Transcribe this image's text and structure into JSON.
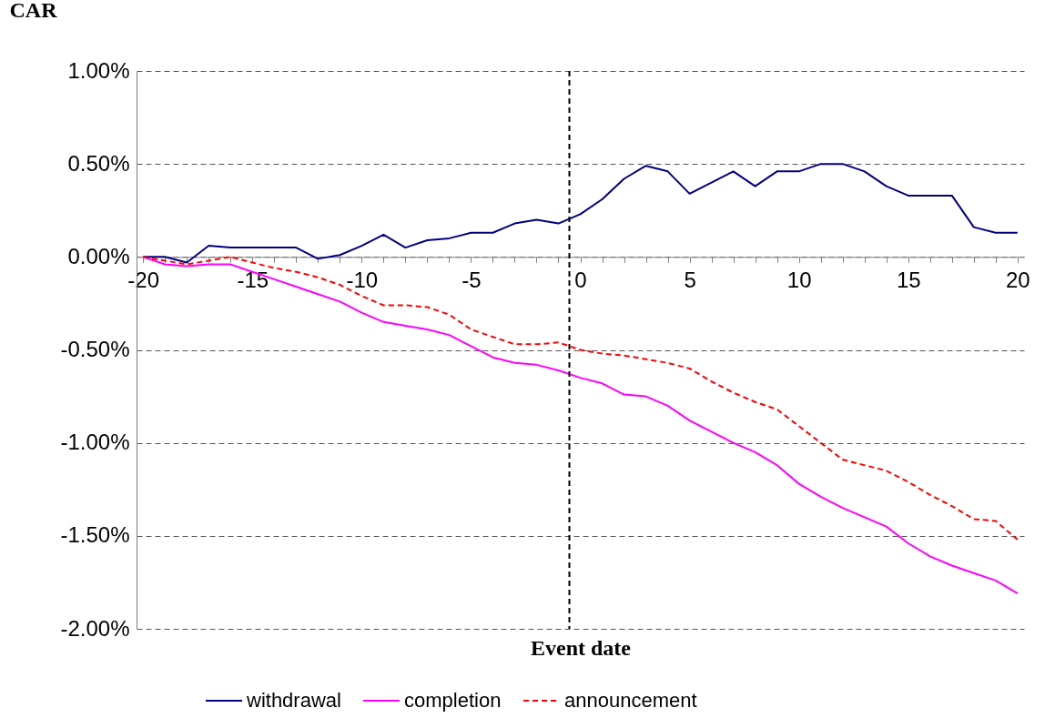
{
  "chart_data": {
    "type": "line",
    "ylabel": "CAR",
    "xlabel": "Event date",
    "x": [
      -20,
      -19,
      -18,
      -17,
      -16,
      -15,
      -14,
      -13,
      -12,
      -11,
      -10,
      -9,
      -8,
      -7,
      -6,
      -5,
      -4,
      -3,
      -2,
      -1,
      0,
      1,
      2,
      3,
      4,
      5,
      6,
      7,
      8,
      9,
      10,
      11,
      12,
      13,
      14,
      15,
      16,
      17,
      18,
      19,
      20
    ],
    "series": [
      {
        "name": "withdrawal",
        "color": "#000080",
        "line_style": "solid",
        "values": [
          0,
          0,
          -0.03,
          0.06,
          0.05,
          0.05,
          0.05,
          0.05,
          -0.01,
          0.01,
          0.06,
          0.12,
          0.05,
          0.09,
          0.1,
          0.13,
          0.13,
          0.18,
          0.2,
          0.18,
          0.23,
          0.31,
          0.42,
          0.49,
          0.46,
          0.34,
          0.4,
          0.46,
          0.38,
          0.46,
          0.46,
          0.5,
          0.5,
          0.46,
          0.38,
          0.33,
          0.33,
          0.33,
          0.16,
          0.13,
          0.13
        ]
      },
      {
        "name": "completion",
        "color": "#ff00ff",
        "line_style": "solid",
        "values": [
          0,
          -0.04,
          -0.05,
          -0.04,
          -0.04,
          -0.08,
          -0.12,
          -0.16,
          -0.2,
          -0.24,
          -0.3,
          -0.35,
          -0.37,
          -0.39,
          -0.42,
          -0.48,
          -0.54,
          -0.57,
          -0.58,
          -0.61,
          -0.65,
          -0.68,
          -0.74,
          -0.75,
          -0.8,
          -0.88,
          -0.94,
          -1.0,
          -1.05,
          -1.12,
          -1.22,
          -1.29,
          -1.35,
          -1.4,
          -1.45,
          -1.54,
          -1.61,
          -1.66,
          -1.7,
          -1.74,
          -1.81
        ]
      },
      {
        "name": "announcement",
        "color": "#ff0000",
        "line_style": "dashed",
        "values": [
          0,
          -0.02,
          -0.04,
          -0.02,
          0,
          -0.03,
          -0.06,
          -0.08,
          -0.11,
          -0.15,
          -0.21,
          -0.26,
          -0.26,
          -0.27,
          -0.31,
          -0.39,
          -0.43,
          -0.47,
          -0.47,
          -0.46,
          -0.5,
          -0.52,
          -0.53,
          -0.55,
          -0.57,
          -0.6,
          -0.67,
          -0.73,
          -0.78,
          -0.82,
          -0.91,
          -1.0,
          -1.09,
          -1.12,
          -1.15,
          -1.21,
          -1.28,
          -1.34,
          -1.41,
          -1.42,
          -1.52
        ]
      }
    ],
    "xlim": [
      -20.3,
      20.3
    ],
    "xticks": [
      -20,
      {
        "value": -19,
        "label": null
      },
      {
        "value": -18,
        "label": null
      },
      {
        "value": -17,
        "label": null
      },
      {
        "value": -16,
        "label": null
      },
      -15,
      {
        "value": -14,
        "label": null
      },
      {
        "value": -13,
        "label": null
      },
      {
        "value": -12,
        "label": null
      },
      {
        "value": -11,
        "label": null
      },
      -10,
      {
        "value": -9,
        "label": null
      },
      {
        "value": -8,
        "label": null
      },
      {
        "value": -7,
        "label": null
      },
      {
        "value": -6,
        "label": null
      },
      -5,
      {
        "value": -4,
        "label": null
      },
      {
        "value": -3,
        "label": null
      },
      {
        "value": -2,
        "label": null
      },
      {
        "value": -1,
        "label": null
      },
      0,
      {
        "value": 1,
        "label": null
      },
      {
        "value": 2,
        "label": null
      },
      {
        "value": 3,
        "label": null
      },
      {
        "value": 4,
        "label": null
      },
      5,
      {
        "value": 6,
        "label": null
      },
      {
        "value": 7,
        "label": null
      },
      {
        "value": 8,
        "label": null
      },
      {
        "value": 9,
        "label": null
      },
      10,
      {
        "value": 11,
        "label": null
      },
      {
        "value": 12,
        "label": null
      },
      {
        "value": 13,
        "label": null
      },
      {
        "value": 14,
        "label": null
      },
      15,
      {
        "value": 16,
        "label": null
      },
      {
        "value": 17,
        "label": null
      },
      {
        "value": 18,
        "label": null
      },
      {
        "value": 19,
        "label": null
      },
      20
    ],
    "ylim": [
      -2,
      1
    ],
    "yticks": [
      {
        "value": -2,
        "label": "-2.00%"
      },
      {
        "value": -1.5,
        "label": "-1.50%"
      },
      {
        "value": -1,
        "label": "-1.00%"
      },
      {
        "value": -0.5,
        "label": "-0.50%"
      },
      {
        "value": 0,
        "label": "0.00%"
      },
      {
        "value": 0.5,
        "label": "0.50%"
      },
      {
        "value": 1,
        "label": "1.00%"
      }
    ],
    "grid": "y",
    "legend": "bottom",
    "ref_lines": [
      {
        "axis": "x",
        "value": -0.5,
        "color": "#000000",
        "line_style": "dashed"
      }
    ]
  }
}
